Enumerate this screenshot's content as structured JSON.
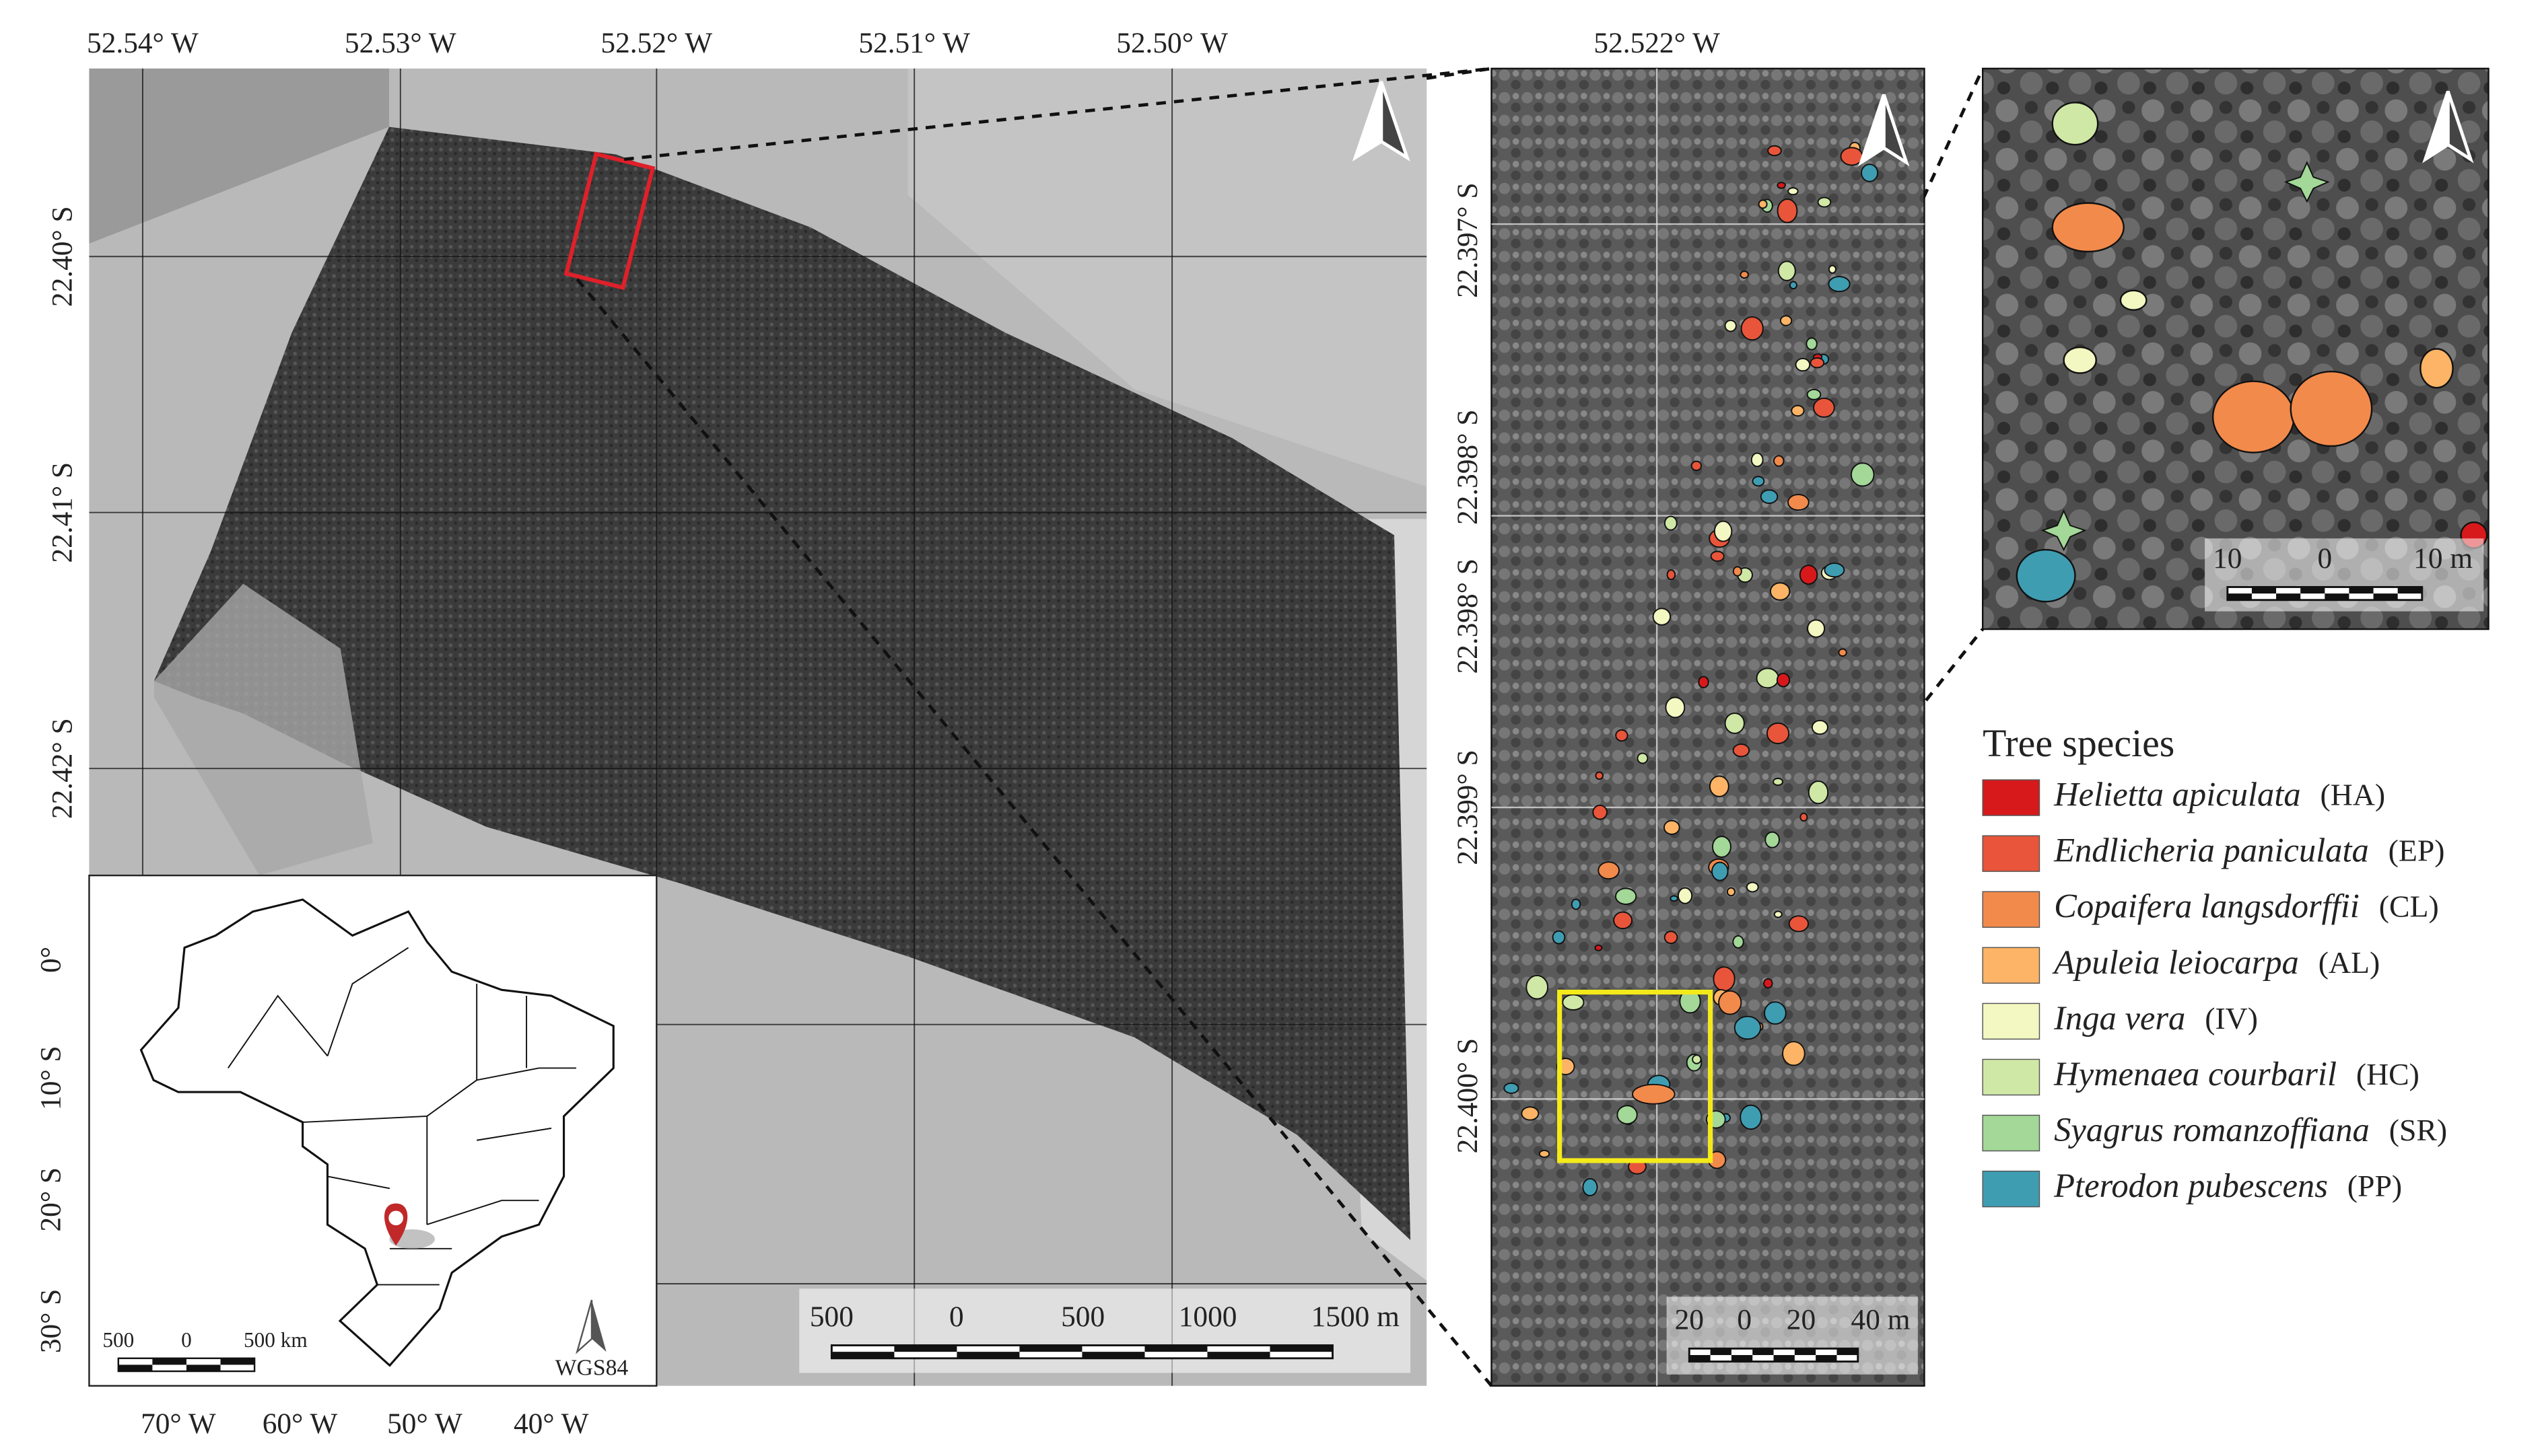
{
  "main_map": {
    "top_labels": [
      "52.54° W",
      "52.53° W",
      "52.52° W",
      "52.51° W",
      "52.50° W"
    ],
    "left_labels": [
      "22.40° S",
      "22.41° S",
      "22.42° S"
    ],
    "scale_bar": [
      "500",
      "0",
      "500",
      "1000",
      "1500 m"
    ]
  },
  "inset_map": {
    "left_labels": [
      "0°",
      "10° S",
      "20° S",
      "30° S"
    ],
    "bottom_labels": [
      "70° W",
      "60° W",
      "50° W",
      "40° W"
    ],
    "scale_bar": [
      "500",
      "0",
      "500 km"
    ],
    "datum": "WGS84"
  },
  "detail_map": {
    "top_label": "52.522° W",
    "left_labels": [
      "22.397° S",
      "22.398° S",
      "22.398° S",
      "22.399° S",
      "22.400° S"
    ],
    "scale_bar": [
      "20",
      "0",
      "20",
      "40 m"
    ]
  },
  "zoom_map": {
    "scale_bar": [
      "10",
      "0",
      "10 m"
    ]
  },
  "legend": {
    "title": "Tree species",
    "items": [
      {
        "name": "Helietta apiculata",
        "code": "(HA)",
        "color": "#d7191c"
      },
      {
        "name": "Endlicheria paniculata",
        "code": "(EP)",
        "color": "#e8553a"
      },
      {
        "name": "Copaifera langsdorffii",
        "code": "(CL)",
        "color": "#f28a4b"
      },
      {
        "name": "Apuleia leiocarpa",
        "code": "(AL)",
        "color": "#fdb466"
      },
      {
        "name": "Inga vera",
        "code": "(IV)",
        "color": "#f3f7c1"
      },
      {
        "name": "Hymenaea courbaril",
        "code": "(HC)",
        "color": "#cfe8a6"
      },
      {
        "name": "Syagrus romanzoffiana",
        "code": "(SR)",
        "color": "#a3d898"
      },
      {
        "name": "Pterodon pubescens",
        "code": "(PP)",
        "color": "#3f9db2"
      }
    ]
  }
}
